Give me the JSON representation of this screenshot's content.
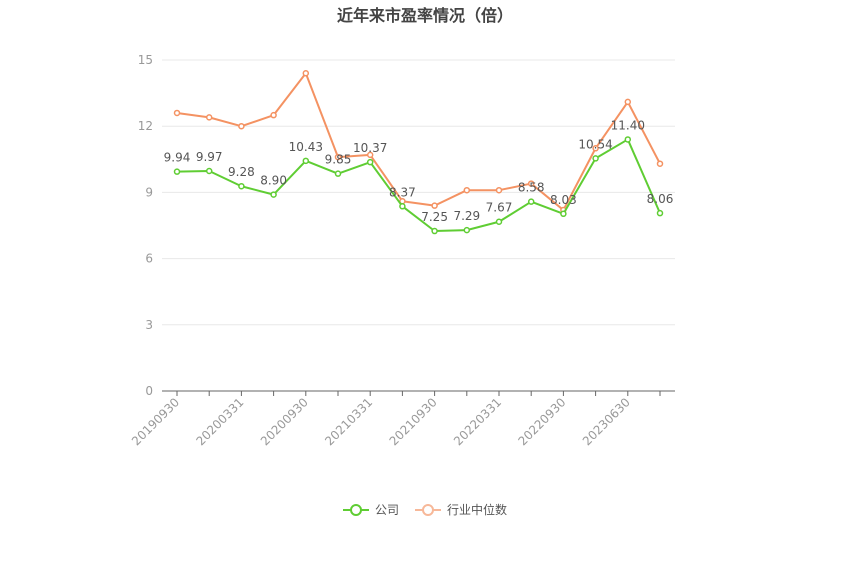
{
  "chart_data": {
    "type": "line",
    "title": "近年来市盈率情况（倍）",
    "categories": [
      "20190930",
      "",
      "20200331",
      "",
      "20200930",
      "",
      "20210331",
      "",
      "20210930",
      "",
      "20220331",
      "",
      "20220930",
      "",
      "20230630",
      ""
    ],
    "series": [
      {
        "name": "公司",
        "color": "#5fcd33",
        "values": [
          9.94,
          9.97,
          9.28,
          8.9,
          10.43,
          9.85,
          10.37,
          8.37,
          7.25,
          7.29,
          7.67,
          8.58,
          8.03,
          10.54,
          11.4,
          8.06
        ],
        "labels": [
          "9.94",
          "9.97",
          "9.28",
          "8.90",
          "10.43",
          "9.85",
          "10.37",
          "8.37",
          "7.25",
          "7.29",
          "7.67",
          "8.58",
          "8.03",
          "10.54",
          "11.40",
          "8.06"
        ]
      },
      {
        "name": "行业中位数",
        "color": "#f49262",
        "values": [
          12.6,
          12.4,
          12.0,
          12.5,
          14.4,
          10.6,
          10.7,
          8.6,
          8.4,
          9.1,
          9.1,
          9.4,
          8.2,
          11.0,
          13.1,
          10.3
        ]
      }
    ],
    "ylim": [
      0,
      15
    ],
    "yticks": [
      0,
      3,
      6,
      9,
      12,
      15
    ],
    "grid": true,
    "legend": "bottom-center"
  }
}
